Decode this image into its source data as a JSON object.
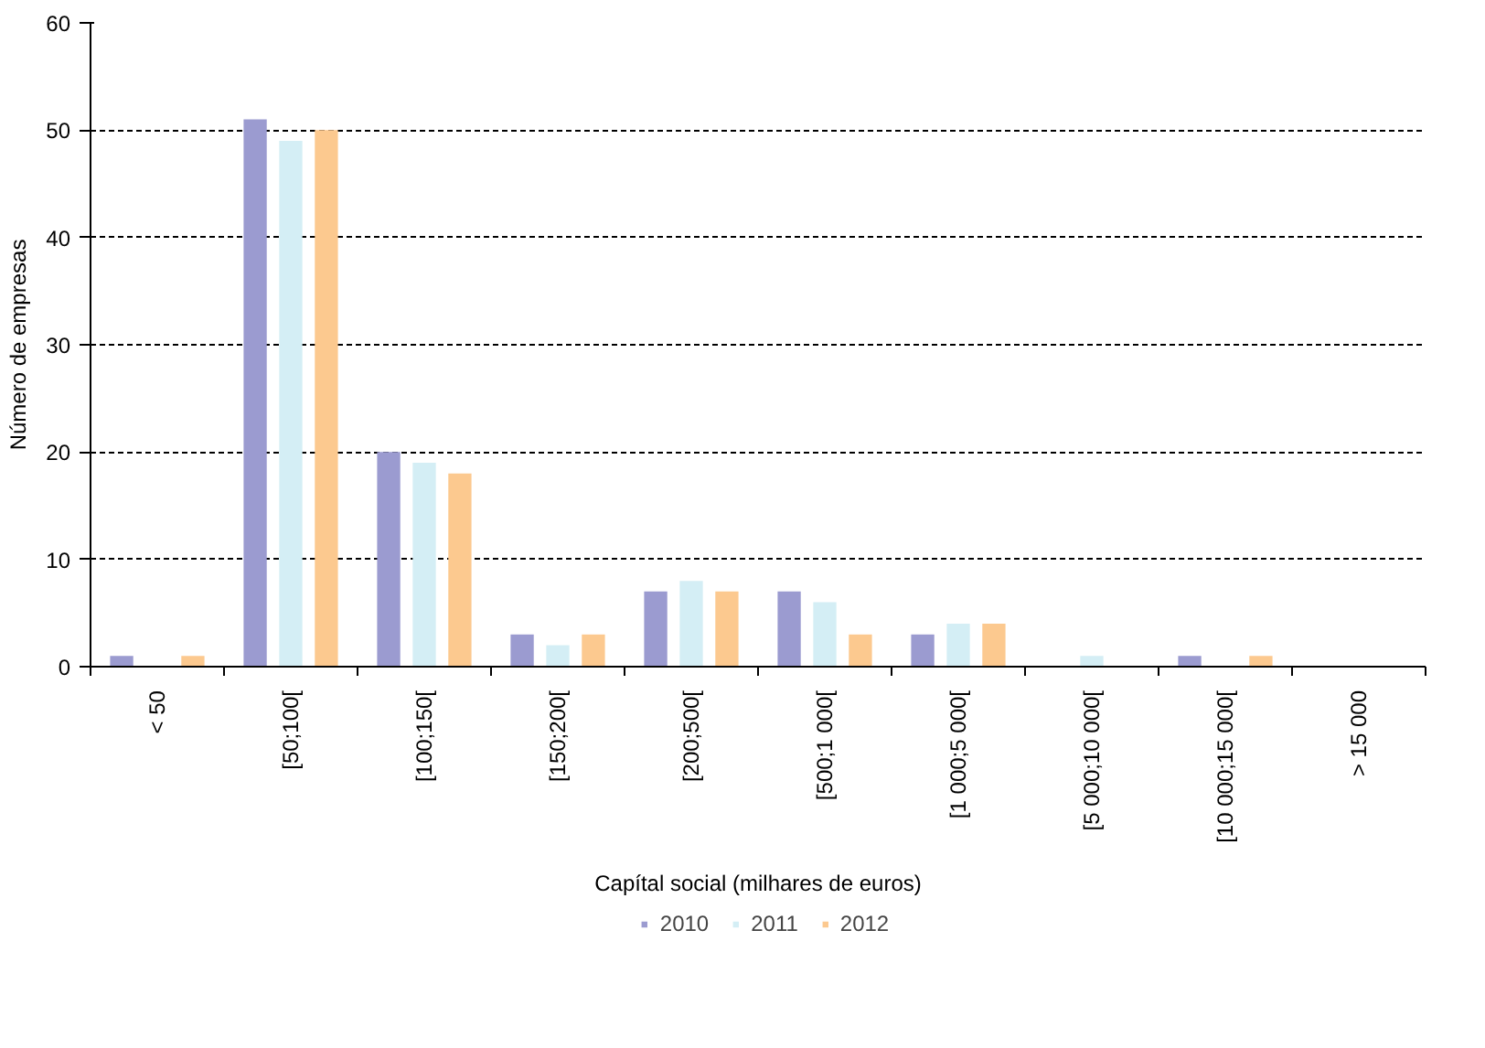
{
  "chart_data": {
    "type": "bar",
    "xlabel": "Capítal social (milhares de euros)",
    "ylabel": "Número de empresas",
    "categories": [
      "< 50",
      "[50;100[",
      "[100;150[",
      "[150;200[",
      "[200;500[",
      "[500;1 000[",
      "[1 000;5 000[",
      "[5 000;10 000[",
      "[10 000;15 000[",
      "> 15 000"
    ],
    "series": [
      {
        "name": "2010",
        "color": "#9b9bd0",
        "values": [
          1,
          51,
          20,
          3,
          7,
          7,
          3,
          0,
          1,
          0
        ]
      },
      {
        "name": "2011",
        "color": "#d4eef5",
        "values": [
          0,
          49,
          19,
          2,
          8,
          6,
          4,
          1,
          0,
          0
        ]
      },
      {
        "name": "2012",
        "color": "#fcc98f",
        "values": [
          1,
          50,
          18,
          3,
          7,
          3,
          4,
          0,
          1,
          0
        ]
      }
    ],
    "ylim": [
      0,
      60
    ],
    "yticks": [
      0,
      10,
      20,
      30,
      40,
      50,
      60
    ],
    "grid": "y",
    "legend": "bottom"
  }
}
